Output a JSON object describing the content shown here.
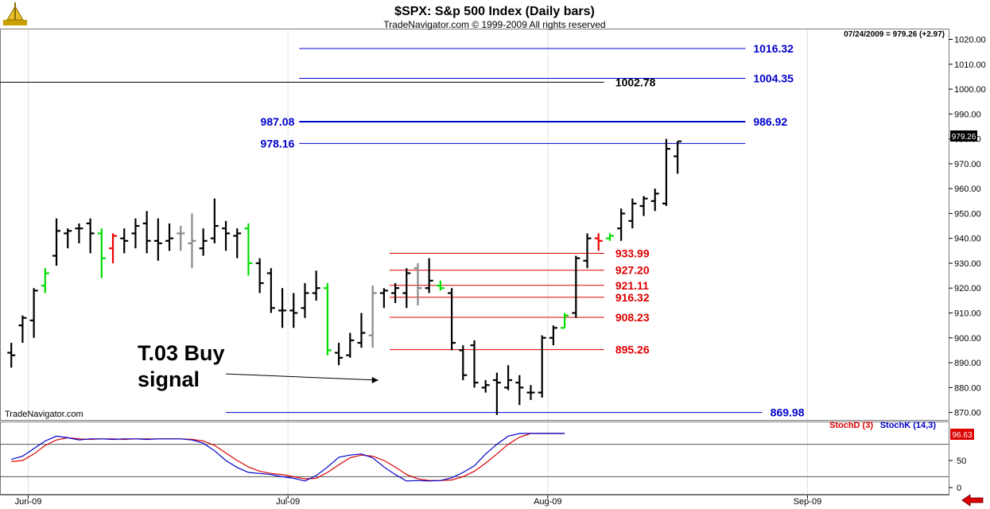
{
  "header": {
    "title": "$SPX:  S&p 500 Index  (Daily bars)",
    "subtitle": "TradeNavigator.com © 1999-2009 All rights reserved",
    "last_bar_info": "07/24/2009 = 979.26 (+2.97)",
    "watermark": "TradeNavigator.com"
  },
  "colors": {
    "up_signal": "#00dd00",
    "down_signal": "#ee0000",
    "neutral_bar": "#888888",
    "bar": "#000000",
    "blue_level": "#0000cc",
    "red_level": "#dd0000",
    "stoch_d": "#dd0000",
    "stoch_k": "#0000cc",
    "nav_arrow": "#dd0000"
  },
  "chart_data": {
    "type": "bar",
    "price_axis": {
      "ylim": [
        867,
        1024
      ],
      "ticks": [
        870,
        880,
        890,
        900,
        910,
        920,
        930,
        940,
        950,
        960,
        970,
        980,
        990,
        1000,
        1010,
        1020
      ],
      "decimals": 2
    },
    "x_axis": {
      "xlim": [
        0,
        84
      ],
      "ticks": [
        {
          "label": "Jun-09",
          "x": 2.5
        },
        {
          "label": "Jul-09",
          "x": 25.5
        },
        {
          "label": "Aug-09",
          "x": 48.5
        },
        {
          "label": "Sep-09",
          "x": 71.5
        }
      ]
    },
    "last_price_label": "979.26",
    "ohlc": [
      {
        "x": 1,
        "o": 894,
        "h": 898,
        "l": 888,
        "c": 893,
        "col": "bar"
      },
      {
        "x": 2,
        "o": 905,
        "h": 909,
        "l": 898,
        "c": 908,
        "col": "bar"
      },
      {
        "x": 3,
        "o": 907,
        "h": 920,
        "l": 900,
        "c": 919,
        "col": "bar"
      },
      {
        "x": 4,
        "o": 921,
        "h": 928,
        "l": 918,
        "c": 926,
        "col": "up"
      },
      {
        "x": 5,
        "o": 933,
        "h": 948,
        "l": 929,
        "c": 943,
        "col": "bar"
      },
      {
        "x": 6,
        "o": 942,
        "h": 944,
        "l": 936,
        "c": 943,
        "col": "bar"
      },
      {
        "x": 7,
        "o": 944,
        "h": 946,
        "l": 938,
        "c": 944,
        "col": "bar"
      },
      {
        "x": 8,
        "o": 946,
        "h": 948,
        "l": 934,
        "c": 942,
        "col": "bar"
      },
      {
        "x": 9,
        "o": 942,
        "h": 944,
        "l": 924,
        "c": 932,
        "col": "up"
      },
      {
        "x": 10,
        "o": 936,
        "h": 942,
        "l": 930,
        "c": 941,
        "col": "down"
      },
      {
        "x": 11,
        "o": 940,
        "h": 944,
        "l": 934,
        "c": 939,
        "col": "bar"
      },
      {
        "x": 12,
        "o": 942,
        "h": 948,
        "l": 936,
        "c": 945,
        "col": "bar"
      },
      {
        "x": 13,
        "o": 946,
        "h": 951,
        "l": 934,
        "c": 939,
        "col": "bar"
      },
      {
        "x": 14,
        "o": 939,
        "h": 948,
        "l": 931,
        "c": 938,
        "col": "bar"
      },
      {
        "x": 15,
        "o": 939,
        "h": 946,
        "l": 935,
        "c": 940,
        "col": "bar"
      },
      {
        "x": 16,
        "o": 942,
        "h": 945,
        "l": 935,
        "c": 942,
        "col": "neutral"
      },
      {
        "x": 17,
        "o": 938,
        "h": 950,
        "l": 928,
        "c": 939,
        "col": "neutral"
      },
      {
        "x": 18,
        "o": 936,
        "h": 944,
        "l": 933,
        "c": 939,
        "col": "bar"
      },
      {
        "x": 19,
        "o": 940,
        "h": 956,
        "l": 938,
        "c": 945,
        "col": "bar"
      },
      {
        "x": 20,
        "o": 944,
        "h": 947,
        "l": 935,
        "c": 942,
        "col": "bar"
      },
      {
        "x": 21,
        "o": 941,
        "h": 944,
        "l": 932,
        "c": 942,
        "col": "bar"
      },
      {
        "x": 22,
        "o": 944,
        "h": 946,
        "l": 925,
        "c": 930,
        "col": "up"
      },
      {
        "x": 23,
        "o": 930,
        "h": 932,
        "l": 918,
        "c": 922,
        "col": "bar"
      },
      {
        "x": 24,
        "o": 926,
        "h": 928,
        "l": 910,
        "c": 912,
        "col": "bar"
      },
      {
        "x": 25,
        "o": 911,
        "h": 920,
        "l": 904,
        "c": 911,
        "col": "bar"
      },
      {
        "x": 26,
        "o": 911,
        "h": 918,
        "l": 904,
        "c": 910,
        "col": "bar"
      },
      {
        "x": 27,
        "o": 912,
        "h": 922,
        "l": 908,
        "c": 918,
        "col": "bar"
      },
      {
        "x": 28,
        "o": 918,
        "h": 927,
        "l": 915,
        "c": 920,
        "col": "bar"
      },
      {
        "x": 29,
        "o": 920,
        "h": 922,
        "l": 893,
        "c": 895,
        "col": "up"
      },
      {
        "x": 30,
        "o": 894,
        "h": 898,
        "l": 889,
        "c": 892,
        "col": "bar"
      },
      {
        "x": 31,
        "o": 893,
        "h": 902,
        "l": 892,
        "c": 899,
        "col": "bar"
      },
      {
        "x": 32,
        "o": 898,
        "h": 910,
        "l": 896,
        "c": 902,
        "col": "bar"
      },
      {
        "x": 33,
        "o": 901,
        "h": 921,
        "l": 896,
        "c": 918,
        "col": "neutral"
      },
      {
        "x": 34,
        "o": 918,
        "h": 920,
        "l": 912,
        "c": 919,
        "col": "bar"
      },
      {
        "x": 35,
        "o": 918,
        "h": 922,
        "l": 914,
        "c": 920,
        "col": "bar"
      },
      {
        "x": 36,
        "o": 918,
        "h": 928,
        "l": 912,
        "c": 926,
        "col": "bar"
      },
      {
        "x": 37,
        "o": 928,
        "h": 930,
        "l": 913,
        "c": 920,
        "col": "neutral"
      },
      {
        "x": 38,
        "o": 920,
        "h": 932,
        "l": 918,
        "c": 923,
        "col": "bar"
      },
      {
        "x": 39,
        "o": 921,
        "h": 923,
        "l": 919,
        "c": 920,
        "col": "up"
      },
      {
        "x": 40,
        "o": 918,
        "h": 920,
        "l": 895,
        "c": 898,
        "col": "bar"
      },
      {
        "x": 41,
        "o": 895,
        "h": 897,
        "l": 883,
        "c": 885,
        "col": "bar"
      },
      {
        "x": 42,
        "o": 897,
        "h": 899,
        "l": 880,
        "c": 882,
        "col": "bar"
      },
      {
        "x": 43,
        "o": 880,
        "h": 883,
        "l": 878,
        "c": 881,
        "col": "bar"
      },
      {
        "x": 44,
        "o": 883,
        "h": 886,
        "l": 869,
        "c": 882,
        "col": "bar"
      },
      {
        "x": 45,
        "o": 880,
        "h": 889,
        "l": 879,
        "c": 883,
        "col": "bar"
      },
      {
        "x": 46,
        "o": 882,
        "h": 885,
        "l": 873,
        "c": 880,
        "col": "bar"
      },
      {
        "x": 47,
        "o": 878,
        "h": 881,
        "l": 875,
        "c": 878,
        "col": "bar"
      },
      {
        "x": 48,
        "o": 878,
        "h": 901,
        "l": 876,
        "c": 900,
        "col": "bar"
      },
      {
        "x": 49,
        "o": 900,
        "h": 905,
        "l": 897,
        "c": 904,
        "col": "bar"
      },
      {
        "x": 50,
        "o": 904,
        "h": 910,
        "l": 904,
        "c": 909,
        "col": "up"
      },
      {
        "x": 51,
        "o": 910,
        "h": 933,
        "l": 908,
        "c": 932,
        "col": "bar"
      },
      {
        "x": 52,
        "o": 931,
        "h": 942,
        "l": 928,
        "c": 940,
        "col": "bar"
      },
      {
        "x": 53,
        "o": 940,
        "h": 942,
        "l": 935,
        "c": 939,
        "col": "down"
      },
      {
        "x": 54,
        "o": 940,
        "h": 942,
        "l": 939,
        "c": 941,
        "col": "up"
      },
      {
        "x": 55,
        "o": 944,
        "h": 952,
        "l": 939,
        "c": 950,
        "col": "bar"
      },
      {
        "x": 56,
        "o": 947,
        "h": 956,
        "l": 944,
        "c": 954,
        "col": "bar"
      },
      {
        "x": 57,
        "o": 953,
        "h": 957,
        "l": 949,
        "c": 956,
        "col": "bar"
      },
      {
        "x": 58,
        "o": 955,
        "h": 960,
        "l": 951,
        "c": 958,
        "col": "bar"
      },
      {
        "x": 59,
        "o": 954,
        "h": 980,
        "l": 953,
        "c": 976,
        "col": "bar"
      },
      {
        "x": 60,
        "o": 973,
        "h": 979,
        "l": 966,
        "c": 979,
        "col": "bar"
      }
    ],
    "levels": [
      {
        "value": 1016.32,
        "label": "1016.32",
        "color": "blue",
        "x0": 26.5,
        "x1": 66,
        "label_side": "right",
        "lw": 1
      },
      {
        "value": 1004.35,
        "label": "1004.35",
        "color": "blue",
        "x0": 26.5,
        "x1": 66,
        "label_side": "right",
        "lw": 1
      },
      {
        "value": 1002.78,
        "label": "1002.78",
        "color": "black",
        "x0": 0,
        "x1": 53.5,
        "label_side": "mid",
        "lw": 1
      },
      {
        "value": 986.92,
        "label": "986.92",
        "color": "blue",
        "x0": 26.5,
        "x1": 66,
        "label_side": "right",
        "lw": 2,
        "left_label": "987.08"
      },
      {
        "value": 978.16,
        "label": "",
        "color": "blue",
        "x0": 26.5,
        "x1": 66,
        "label_side": "right",
        "lw": 1,
        "left_label": "978.16"
      },
      {
        "value": 933.99,
        "label": "933.99",
        "color": "red",
        "x0": 34.5,
        "x1": 53.5,
        "label_side": "mid",
        "lw": 1
      },
      {
        "value": 927.2,
        "label": "927.20",
        "color": "red",
        "x0": 34.5,
        "x1": 53.5,
        "label_side": "mid",
        "lw": 1
      },
      {
        "value": 921.11,
        "label": "921.11",
        "color": "red",
        "x0": 34.5,
        "x1": 53.5,
        "label_side": "mid",
        "lw": 1
      },
      {
        "value": 916.32,
        "label": "916.32",
        "color": "red",
        "x0": 34.5,
        "x1": 53.5,
        "label_side": "mid",
        "lw": 1
      },
      {
        "value": 908.23,
        "label": "908.23",
        "color": "red",
        "x0": 34.5,
        "x1": 53.5,
        "label_side": "mid",
        "lw": 1
      },
      {
        "value": 895.26,
        "label": "895.26",
        "color": "red",
        "x0": 34.5,
        "x1": 53.5,
        "label_side": "mid",
        "lw": 1
      },
      {
        "value": 869.98,
        "label": "869.98",
        "color": "blue",
        "x0": 20,
        "x1": 67.5,
        "label_side": "right",
        "lw": 1
      }
    ],
    "annotation": {
      "line1": "T.03 Buy",
      "line2": "signal",
      "arrow_from": {
        "x": 20,
        "y": 885.5
      },
      "arrow_to": {
        "x": 33.5,
        "y": 883
      }
    },
    "stochastic": {
      "ylim": [
        0,
        100
      ],
      "ticks": [
        0,
        50
      ],
      "ref_levels": [
        20,
        80
      ],
      "last_value_label": "96.63",
      "legend_d": "StochD (3)",
      "legend_k": "StochK (14,3)",
      "stoch_k": [
        [
          1,
          52
        ],
        [
          2,
          58
        ],
        [
          3,
          72
        ],
        [
          4,
          86
        ],
        [
          5,
          95
        ],
        [
          6,
          92
        ],
        [
          7,
          88
        ],
        [
          8,
          90
        ],
        [
          9,
          90
        ],
        [
          10,
          89
        ],
        [
          11,
          90
        ],
        [
          12,
          90
        ],
        [
          13,
          89
        ],
        [
          14,
          90
        ],
        [
          15,
          90
        ],
        [
          16,
          90
        ],
        [
          17,
          88
        ],
        [
          18,
          82
        ],
        [
          19,
          68
        ],
        [
          20,
          50
        ],
        [
          21,
          37
        ],
        [
          22,
          28
        ],
        [
          23,
          26
        ],
        [
          24,
          24
        ],
        [
          25,
          20
        ],
        [
          26,
          17
        ],
        [
          27,
          12
        ],
        [
          28,
          22
        ],
        [
          29,
          38
        ],
        [
          30,
          56
        ],
        [
          31,
          60
        ],
        [
          32,
          62
        ],
        [
          33,
          55
        ],
        [
          34,
          38
        ],
        [
          35,
          24
        ],
        [
          36,
          12
        ],
        [
          37,
          13
        ],
        [
          38,
          12
        ],
        [
          39,
          13
        ],
        [
          40,
          18
        ],
        [
          41,
          28
        ],
        [
          42,
          40
        ],
        [
          43,
          62
        ],
        [
          44,
          80
        ],
        [
          45,
          95
        ],
        [
          46,
          100
        ],
        [
          47,
          100
        ],
        [
          48,
          100
        ],
        [
          49,
          100
        ],
        [
          50,
          100
        ]
      ],
      "stoch_d": [
        [
          1,
          48
        ],
        [
          2,
          50
        ],
        [
          3,
          62
        ],
        [
          4,
          78
        ],
        [
          5,
          88
        ],
        [
          6,
          92
        ],
        [
          7,
          90
        ],
        [
          8,
          89
        ],
        [
          9,
          90
        ],
        [
          10,
          90
        ],
        [
          11,
          89
        ],
        [
          12,
          90
        ],
        [
          13,
          90
        ],
        [
          14,
          90
        ],
        [
          15,
          90
        ],
        [
          16,
          90
        ],
        [
          17,
          89
        ],
        [
          18,
          86
        ],
        [
          19,
          78
        ],
        [
          20,
          64
        ],
        [
          21,
          50
        ],
        [
          22,
          38
        ],
        [
          23,
          30
        ],
        [
          24,
          26
        ],
        [
          25,
          24
        ],
        [
          26,
          20
        ],
        [
          27,
          16
        ],
        [
          28,
          17
        ],
        [
          29,
          28
        ],
        [
          30,
          42
        ],
        [
          31,
          55
        ],
        [
          32,
          60
        ],
        [
          33,
          58
        ],
        [
          34,
          50
        ],
        [
          35,
          38
        ],
        [
          36,
          24
        ],
        [
          37,
          16
        ],
        [
          38,
          13
        ],
        [
          39,
          13
        ],
        [
          40,
          14
        ],
        [
          41,
          20
        ],
        [
          42,
          30
        ],
        [
          43,
          45
        ],
        [
          44,
          62
        ],
        [
          45,
          80
        ],
        [
          46,
          93
        ],
        [
          47,
          100
        ],
        [
          48,
          100
        ],
        [
          49,
          100
        ],
        [
          50,
          100
        ]
      ]
    }
  }
}
